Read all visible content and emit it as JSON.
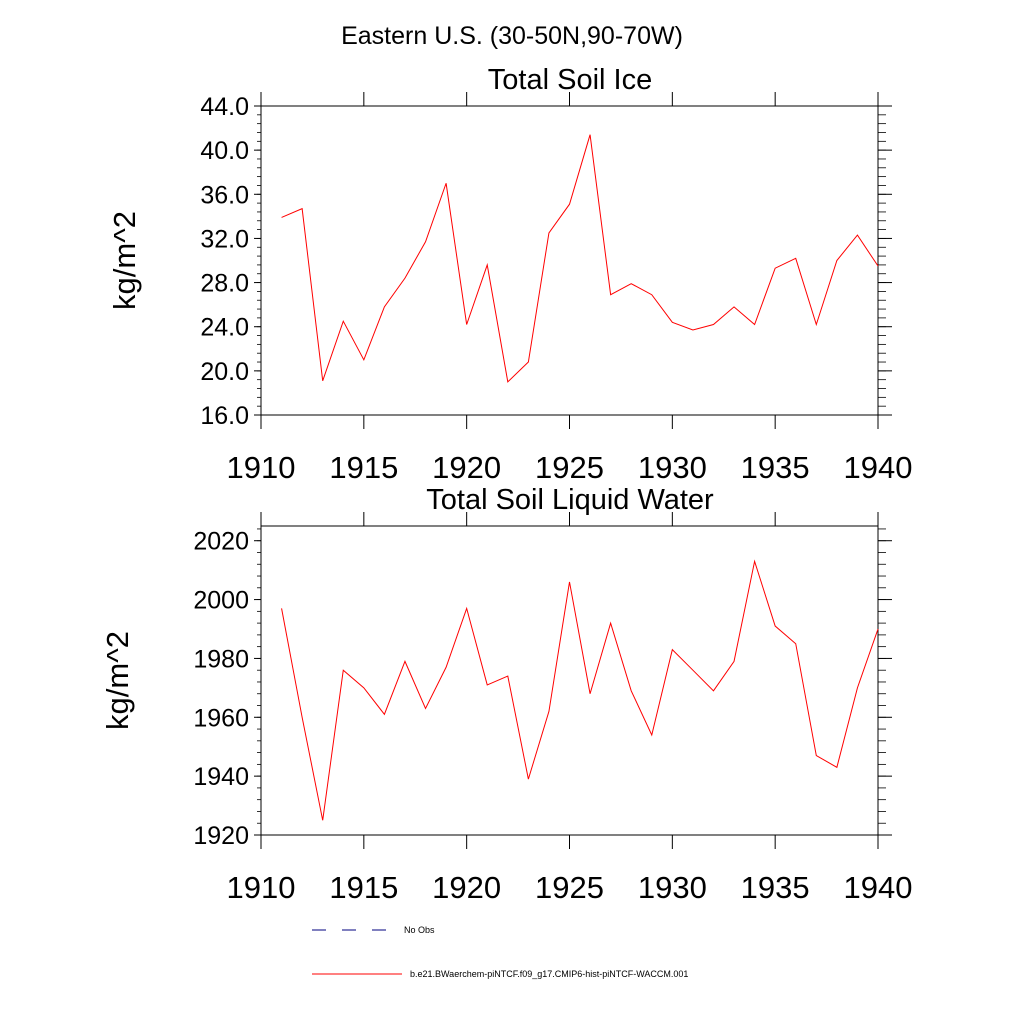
{
  "figure": {
    "main_title": "Eastern U.S. (30-50N,90-70W)",
    "series_color": "#ff0000",
    "legend": {
      "items": [
        {
          "label": "No Obs",
          "style": "dashed",
          "color": "#00007f"
        },
        {
          "label": "b.e21.BWaerchem-piNTCF.f09_g17.CMIP6-hist-piNTCF-WACCM.001",
          "style": "solid",
          "color": "#ff0000"
        }
      ]
    }
  },
  "chart_data": [
    {
      "type": "line",
      "title": "Total Soil Ice",
      "xlabel": "",
      "ylabel": "kg/m^2",
      "xlim": [
        1910,
        1940
      ],
      "ylim": [
        16,
        44
      ],
      "xticks": [
        1910,
        1915,
        1920,
        1925,
        1930,
        1935,
        1940
      ],
      "xtick_labels": [
        "1910",
        "1915",
        "1920",
        "1925",
        "1930",
        "1935",
        "1940"
      ],
      "yticks": [
        16,
        20,
        24,
        28,
        32,
        36,
        40,
        44
      ],
      "ytick_labels": [
        "16.0",
        "20.0",
        "24.0",
        "28.0",
        "32.0",
        "36.0",
        "40.0",
        "44.0"
      ],
      "grid": false,
      "series": [
        {
          "x": [
            1911,
            1912,
            1913,
            1914,
            1915,
            1916,
            1917,
            1918,
            1919,
            1920,
            1921,
            1922,
            1923,
            1924,
            1925,
            1926,
            1927,
            1928,
            1929,
            1930,
            1931,
            1932,
            1933,
            1934,
            1935,
            1936,
            1937,
            1938,
            1939,
            1940
          ],
          "values": [
            33.9,
            34.7,
            19.1,
            24.5,
            21.0,
            25.8,
            28.4,
            31.7,
            37.0,
            24.2,
            29.6,
            19.0,
            20.8,
            32.5,
            35.1,
            41.4,
            26.9,
            27.9,
            26.9,
            24.4,
            23.7,
            24.2,
            25.8,
            24.2,
            29.3,
            30.2,
            24.2,
            30.0,
            32.3,
            29.5
          ]
        }
      ]
    },
    {
      "type": "line",
      "title": "Total Soil Liquid Water",
      "xlabel": "",
      "ylabel": "kg/m^2",
      "xlim": [
        1910,
        1940
      ],
      "ylim": [
        1920,
        2025
      ],
      "xticks": [
        1910,
        1915,
        1920,
        1925,
        1930,
        1935,
        1940
      ],
      "xtick_labels": [
        "1910",
        "1915",
        "1920",
        "1925",
        "1930",
        "1935",
        "1940"
      ],
      "yticks": [
        1920,
        1940,
        1960,
        1980,
        2000,
        2020
      ],
      "ytick_labels": [
        "1920",
        "1940",
        "1960",
        "1980",
        "2000",
        "2020"
      ],
      "grid": false,
      "series": [
        {
          "x": [
            1911,
            1912,
            1913,
            1914,
            1915,
            1916,
            1917,
            1918,
            1919,
            1920,
            1921,
            1922,
            1923,
            1924,
            1925,
            1926,
            1927,
            1928,
            1929,
            1930,
            1931,
            1932,
            1933,
            1934,
            1935,
            1936,
            1937,
            1938,
            1939,
            1940
          ],
          "values": [
            1997,
            1960,
            1925,
            1976,
            1970,
            1961,
            1979,
            1963,
            1977,
            1997,
            1971,
            1974,
            1939,
            1962,
            2006,
            1968,
            1992,
            1969,
            1954,
            1983,
            1976,
            1969,
            1979,
            2013,
            1991,
            1985,
            1947,
            1943,
            1970,
            1990
          ]
        }
      ]
    }
  ]
}
